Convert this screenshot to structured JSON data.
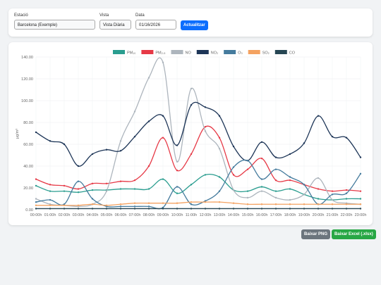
{
  "controls": {
    "station_label": "Estació",
    "station_value": "Barcelona (Exemple)",
    "view_label": "Vista",
    "view_value": "Vista Diària",
    "date_label": "Data",
    "date_value": "01/16/2026",
    "update_button": "Actualitzar"
  },
  "chart_data": {
    "type": "line",
    "y_label": "µg/m³",
    "categories": [
      "00:00h",
      "01:00h",
      "02:00h",
      "03:00h",
      "04:00h",
      "05:00h",
      "06:00h",
      "07:00h",
      "08:00h",
      "09:00h",
      "10:00h",
      "11:00h",
      "12:00h",
      "13:00h",
      "14:00h",
      "15:00h",
      "16:00h",
      "17:00h",
      "18:00h",
      "19:00h",
      "20:00h",
      "21:00h",
      "22:00h",
      "23:00h"
    ],
    "ylim": [
      0,
      140
    ],
    "yticks": [
      {
        "value": 0,
        "label": "0.00"
      },
      {
        "value": 20,
        "label": "20.00"
      },
      {
        "value": 40,
        "label": "40.00"
      },
      {
        "value": 60,
        "label": "60.00"
      },
      {
        "value": 80,
        "label": "80.00"
      },
      {
        "value": 100,
        "label": "100.00"
      },
      {
        "value": 120,
        "label": "120.00"
      },
      {
        "value": 140,
        "label": "140.00"
      }
    ],
    "grid": true,
    "series": [
      {
        "name": "PM₁₀",
        "color": "#2a9d8f",
        "values": [
          22,
          17,
          17,
          16,
          18,
          18,
          19,
          19,
          19,
          28,
          15,
          23,
          32,
          30,
          18,
          17,
          21,
          17,
          19,
          14,
          10,
          9,
          10,
          10
        ]
      },
      {
        "name": "PM₂.₅",
        "color": "#e63946",
        "values": [
          28,
          23,
          22,
          19,
          24,
          24,
          26,
          27,
          40,
          66,
          36,
          51,
          76,
          66,
          32,
          37,
          47,
          27,
          27,
          23,
          19,
          17,
          18,
          17
        ]
      },
      {
        "name": "NO",
        "color": "#adb5bd",
        "values": [
          10,
          5,
          4,
          3,
          5,
          17,
          63,
          90,
          121,
          135,
          44,
          111,
          72,
          56,
          18,
          11,
          17,
          11,
          9,
          14,
          29,
          9,
          6,
          5
        ]
      },
      {
        "name": "NO₂",
        "color": "#1d3557",
        "values": [
          71,
          63,
          60,
          40,
          51,
          55,
          54,
          67,
          81,
          86,
          59,
          96,
          94,
          86,
          58,
          45,
          62,
          48,
          51,
          61,
          86,
          67,
          66,
          48
        ]
      },
      {
        "name": "O₃",
        "color": "#457b9d",
        "values": [
          7,
          9,
          5,
          26,
          10,
          3,
          3,
          3,
          3,
          2,
          21,
          5,
          8,
          17,
          39,
          45,
          28,
          37,
          30,
          23,
          5,
          14,
          15,
          33
        ]
      },
      {
        "name": "SO₂",
        "color": "#f4a261",
        "values": [
          4,
          4,
          4,
          4,
          5,
          4,
          5,
          6,
          6,
          6,
          6,
          7,
          7,
          7,
          6,
          5,
          5,
          5,
          5,
          5,
          5,
          5,
          5,
          5
        ]
      },
      {
        "name": "CO",
        "color": "#264653",
        "values": [
          1,
          1,
          1,
          1,
          1,
          1,
          1,
          1,
          1,
          1,
          1,
          1,
          1,
          1,
          1,
          1,
          1,
          1,
          1,
          1,
          1,
          1,
          1,
          1
        ]
      }
    ]
  },
  "actions": {
    "png_button": "Baixar PNG",
    "excel_button": "Baixar Excel (.xlsx)"
  }
}
